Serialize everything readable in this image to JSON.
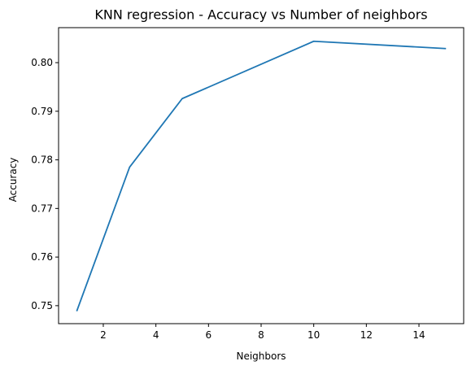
{
  "chart_data": {
    "type": "line",
    "title": "KNN regression - Accuracy vs Number of neighbors",
    "xlabel": "Neighbors",
    "ylabel": "Accuracy",
    "xlim": [
      0.3,
      15.7
    ],
    "ylim": [
      0.7463,
      0.8072
    ],
    "xticks": [
      2,
      4,
      6,
      8,
      10,
      12,
      14
    ],
    "yticks": [
      0.75,
      0.76,
      0.77,
      0.78,
      0.79,
      0.8
    ],
    "ytick_labels": [
      "0.75",
      "0.76",
      "0.77",
      "0.78",
      "0.79",
      "0.80"
    ],
    "grid": false,
    "series": [
      {
        "x": [
          1,
          3,
          5,
          10,
          15
        ],
        "y": [
          0.749,
          0.7785,
          0.7926,
          0.8044,
          0.8029
        ],
        "color": "#1f77b4"
      }
    ]
  }
}
